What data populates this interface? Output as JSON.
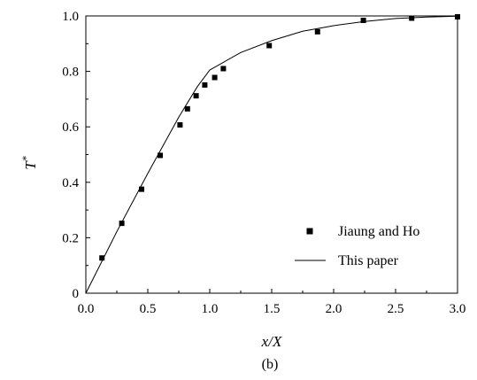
{
  "chart_data": {
    "type": "line",
    "xlabel": "x/X",
    "ylabel": "T",
    "ylabel_superscript": "*",
    "caption": "(b)",
    "xlim": [
      0,
      3.0
    ],
    "ylim": [
      0,
      1.0
    ],
    "x_ticks": [
      "0.0",
      "0.5",
      "1.0",
      "1.5",
      "2.0",
      "2.5",
      "3.0"
    ],
    "y_ticks": [
      "0",
      "0.2",
      "0.4",
      "0.6",
      "0.8",
      "1.0"
    ],
    "legend_position": "bottom-right",
    "series": [
      {
        "name": "Jiaung and Ho",
        "marker": "square",
        "x": [
          0.13,
          0.29,
          0.45,
          0.6,
          0.76,
          0.82,
          0.89,
          0.96,
          1.04,
          1.11,
          1.48,
          1.87,
          2.24,
          2.63,
          3.0
        ],
        "y": [
          0.127,
          0.252,
          0.375,
          0.497,
          0.607,
          0.665,
          0.712,
          0.751,
          0.778,
          0.81,
          0.893,
          0.943,
          0.984,
          0.992,
          0.997
        ]
      },
      {
        "name": "This paper",
        "style": "line",
        "x": [
          0,
          0.25,
          0.5,
          0.75,
          0.9,
          1.0,
          1.25,
          1.5,
          1.75,
          2.0,
          2.25,
          2.5,
          2.75,
          3.0
        ],
        "y": [
          0,
          0.222,
          0.432,
          0.635,
          0.745,
          0.805,
          0.868,
          0.911,
          0.945,
          0.965,
          0.98,
          0.991,
          0.996,
          0.999
        ]
      }
    ]
  }
}
